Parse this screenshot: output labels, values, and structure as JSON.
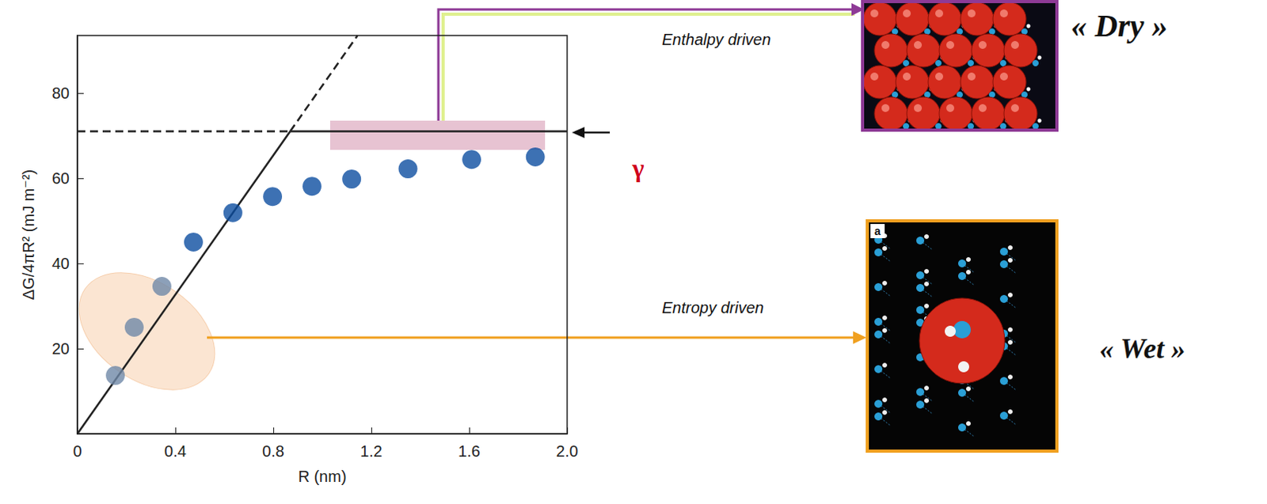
{
  "chart_data": {
    "type": "scatter",
    "x_label": "R (nm)",
    "y_label": "ΔG/4πR² (mJ m⁻²)",
    "xlim": [
      0,
      2
    ],
    "xticks": [
      0,
      0.4,
      0.8,
      1.2,
      1.6,
      {
        "value": 2,
        "label": "2.0"
      }
    ],
    "ylim": [
      0,
      93.5
    ],
    "yticks": [
      20,
      40,
      60,
      80
    ],
    "grid": false,
    "series": [
      {
        "type": "scatter",
        "marker": "circle",
        "x": [
          0.155,
          0.232,
          0.345,
          0.474,
          0.635,
          0.797,
          0.958,
          1.12,
          1.35,
          1.61,
          1.87
        ],
        "values": [
          13.7,
          25.0,
          34.6,
          45.0,
          51.9,
          55.7,
          58.1,
          59.8,
          62.2,
          64.4,
          65.0
        ],
        "colors": [
          "#6f88a8",
          "#6f88a8",
          "#6f88a8",
          "#0d4ea0",
          "#0d4ea0",
          "#0d4ea0",
          "#0d4ea0",
          "#0d4ea0",
          "#0d4ea0",
          "#0d4ea0",
          "#0d4ea0"
        ]
      },
      {
        "type": "line",
        "line_style": "solid",
        "color": "#222222",
        "x": [
          0,
          0.869
        ],
        "values": [
          0,
          71
        ]
      },
      {
        "type": "line",
        "line_style": "dashed",
        "color": "#222222",
        "x": [
          0.869,
          1.144
        ],
        "values": [
          71,
          93.5
        ]
      },
      {
        "type": "line",
        "line_style": "dashed",
        "color": "#222222",
        "x": [
          0,
          0.869
        ],
        "values": [
          71,
          71
        ]
      },
      {
        "type": "line",
        "line_style": "solid",
        "color": "#222222",
        "x": [
          0.869,
          2
        ],
        "values": [
          71,
          71
        ]
      }
    ],
    "annotations": [
      {
        "text": "γ",
        "color": "#d0021b"
      },
      {
        "text": "Enthalpy driven"
      },
      {
        "text": "Entropy driven"
      },
      {
        "text": "« Dry »"
      },
      {
        "text": "« Wet »"
      },
      {
        "text": "a"
      }
    ]
  }
}
